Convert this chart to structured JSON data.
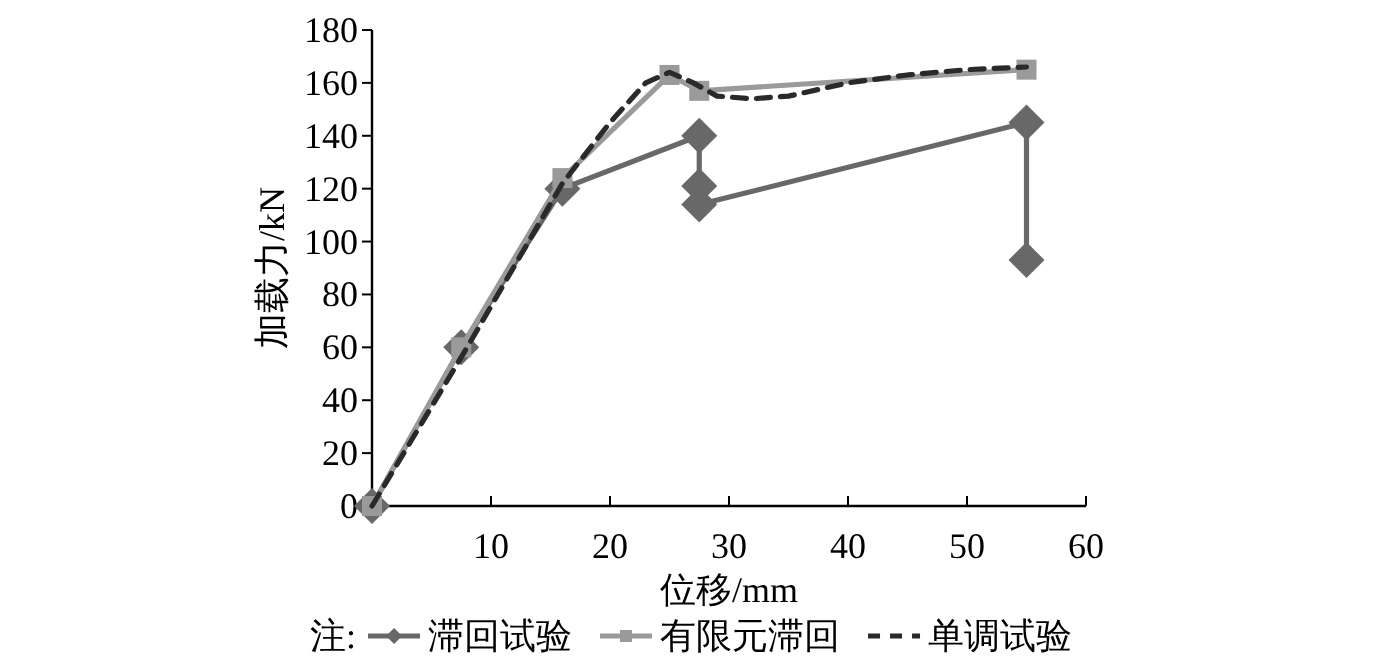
{
  "chart_data": {
    "type": "line",
    "xlabel": "位移/mm",
    "ylabel": "加载力/kN",
    "legend_title": "注:",
    "legend": "bottom",
    "grid": false,
    "xlim": [
      0,
      60
    ],
    "xticks": [
      {
        "value": 0,
        "label": null
      },
      10,
      20,
      30,
      40,
      50,
      60
    ],
    "ylim": [
      0,
      180
    ],
    "yticks": [
      0,
      20,
      40,
      60,
      80,
      100,
      120,
      140,
      160,
      180
    ],
    "series": [
      {
        "name": "滞回试验",
        "color": "#686868",
        "marker": "diamond",
        "line_style": "solid",
        "x": [
          0,
          7.5,
          16,
          27.5,
          27.5,
          27.5,
          55,
          55
        ],
        "values": [
          0,
          60,
          120,
          140,
          121,
          114,
          145,
          93
        ]
      },
      {
        "name": "有限元滞回",
        "color": "#9a9a9a",
        "marker": "square",
        "line_style": "solid",
        "x": [
          0,
          7.5,
          16,
          25,
          27.5,
          55
        ],
        "values": [
          0,
          60,
          124,
          163,
          157,
          165
        ]
      },
      {
        "name": "单调试验",
        "color": "#2a2a2a",
        "marker": "none",
        "line_style": "dashed",
        "x": [
          0,
          8,
          16,
          20,
          23,
          25,
          27,
          29,
          32,
          35,
          40,
          45,
          50,
          55
        ],
        "values": [
          0,
          60,
          122,
          145,
          160,
          164,
          160,
          155,
          154,
          155,
          160,
          163,
          165,
          166
        ]
      }
    ]
  }
}
